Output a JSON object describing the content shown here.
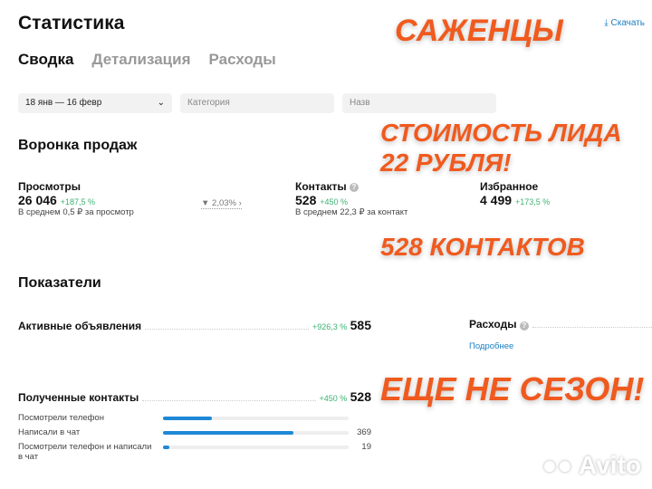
{
  "header": {
    "title": "Статистика",
    "download": "Скачать",
    "tabs": [
      {
        "label": "Сводка",
        "active": true
      },
      {
        "label": "Детализация"
      },
      {
        "label": "Расходы"
      }
    ]
  },
  "filters": {
    "period": "18 янв — 16 февр",
    "category_placeholder": "Категория",
    "third_placeholder": "Назв"
  },
  "funnel": {
    "title": "Воронка продаж",
    "views": {
      "label": "Просмотры",
      "value": "26 046",
      "change": "+187,5 %",
      "note": "В среднем 0,5 ₽ за просмотр"
    },
    "conversion": "2,03%",
    "contacts": {
      "label": "Контакты",
      "value": "528",
      "change": "+450 %",
      "note": "В среднем 22,3 ₽ за контакт"
    },
    "favorites": {
      "label": "Избранное",
      "value": "4 499",
      "change": "+173,5 %"
    }
  },
  "metrics": {
    "title": "Показатели",
    "active_ads": {
      "label": "Активные объявления",
      "change": "+926,3 %",
      "value": "585"
    },
    "expenses": {
      "label": "Расходы",
      "link": "Подробнее"
    },
    "contacts": {
      "label": "Полученные контакты",
      "change": "+450 %",
      "value": "528",
      "rows": [
        {
          "label": "Посмотрели телефон",
          "fraction": 0.265
        },
        {
          "label": "Написали в чат",
          "value": "369",
          "fraction": 0.7
        },
        {
          "label": "Посмотрели телефон и написали в чат",
          "value": "19",
          "fraction": 0.036
        }
      ]
    }
  },
  "overlay": {
    "line1": "САЖЕНЦЫ",
    "line2": "СТОИМОСТЬ ЛИДА",
    "line3": "22 РУБЛЯ!",
    "line4": "528 КОНТАКТОВ",
    "line5": "ЕЩЕ НЕ СЕЗОН!"
  },
  "watermark": "Avito",
  "colors": {
    "accent": "#f05a1e",
    "bar": "#1e88d6",
    "positive": "#3cb371",
    "link": "#1a7fc2"
  }
}
